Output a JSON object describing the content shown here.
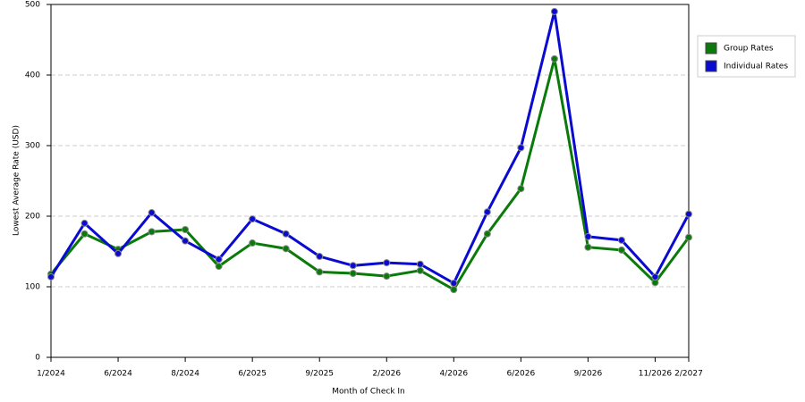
{
  "chart_data": {
    "type": "line",
    "x_label": "Month of Check In",
    "y_label": "Lowest Average Rate (USD)",
    "categories": [
      "1/2024",
      null,
      "6/2024",
      null,
      "8/2024",
      null,
      "6/2025",
      null,
      "9/2025",
      null,
      "2/2026",
      null,
      "4/2026",
      null,
      "6/2026",
      null,
      "9/2026",
      null,
      "11/2026",
      "2/2027"
    ],
    "series": [
      {
        "name": "Group Rates",
        "color": "#0a7a0a",
        "values": [
          118,
          175,
          153,
          178,
          181,
          129,
          162,
          154,
          121,
          119,
          115,
          123,
          96,
          175,
          239,
          423,
          156,
          152,
          106,
          170
        ]
      },
      {
        "name": "Individual Rates",
        "color": "#0a0ad0",
        "values": [
          114,
          190,
          147,
          205,
          165,
          139,
          196,
          175,
          143,
          130,
          134,
          132,
          105,
          206,
          297,
          490,
          171,
          166,
          114,
          203
        ]
      }
    ],
    "ylim": [
      0,
      500
    ],
    "yticks": [
      0,
      100,
      200,
      300,
      400,
      500
    ],
    "grid": true,
    "legend": "right"
  }
}
